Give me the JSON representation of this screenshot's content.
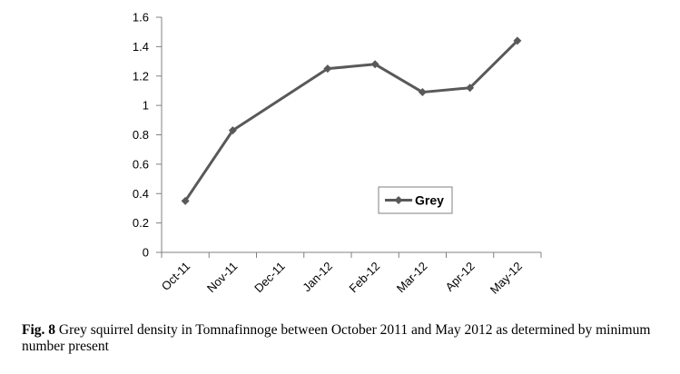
{
  "chart_data": {
    "type": "line",
    "categories": [
      "Oct-11",
      "Nov-11",
      "Dec-11",
      "Jan-12",
      "Feb-12",
      "Mar-12",
      "Apr-12",
      "May-12"
    ],
    "series": [
      {
        "name": "Grey",
        "values": [
          0.35,
          0.83,
          null,
          1.25,
          1.28,
          1.09,
          1.12,
          1.44
        ],
        "color": "#595959",
        "marker": "diamond"
      }
    ],
    "ylim": [
      0,
      1.6
    ],
    "yticks": [
      "0",
      "0.2",
      "0.4",
      "0.6",
      "0.8",
      "1",
      "1.2",
      "1.4",
      "1.6"
    ],
    "grid": false,
    "legend_position": "inside-right",
    "title": "",
    "xlabel": "",
    "ylabel": ""
  },
  "caption": {
    "label": "Fig. 8",
    "text": "Grey squirrel density in Tomnafinnoge between October 2011 and May 2012 as determined by minimum number present"
  }
}
